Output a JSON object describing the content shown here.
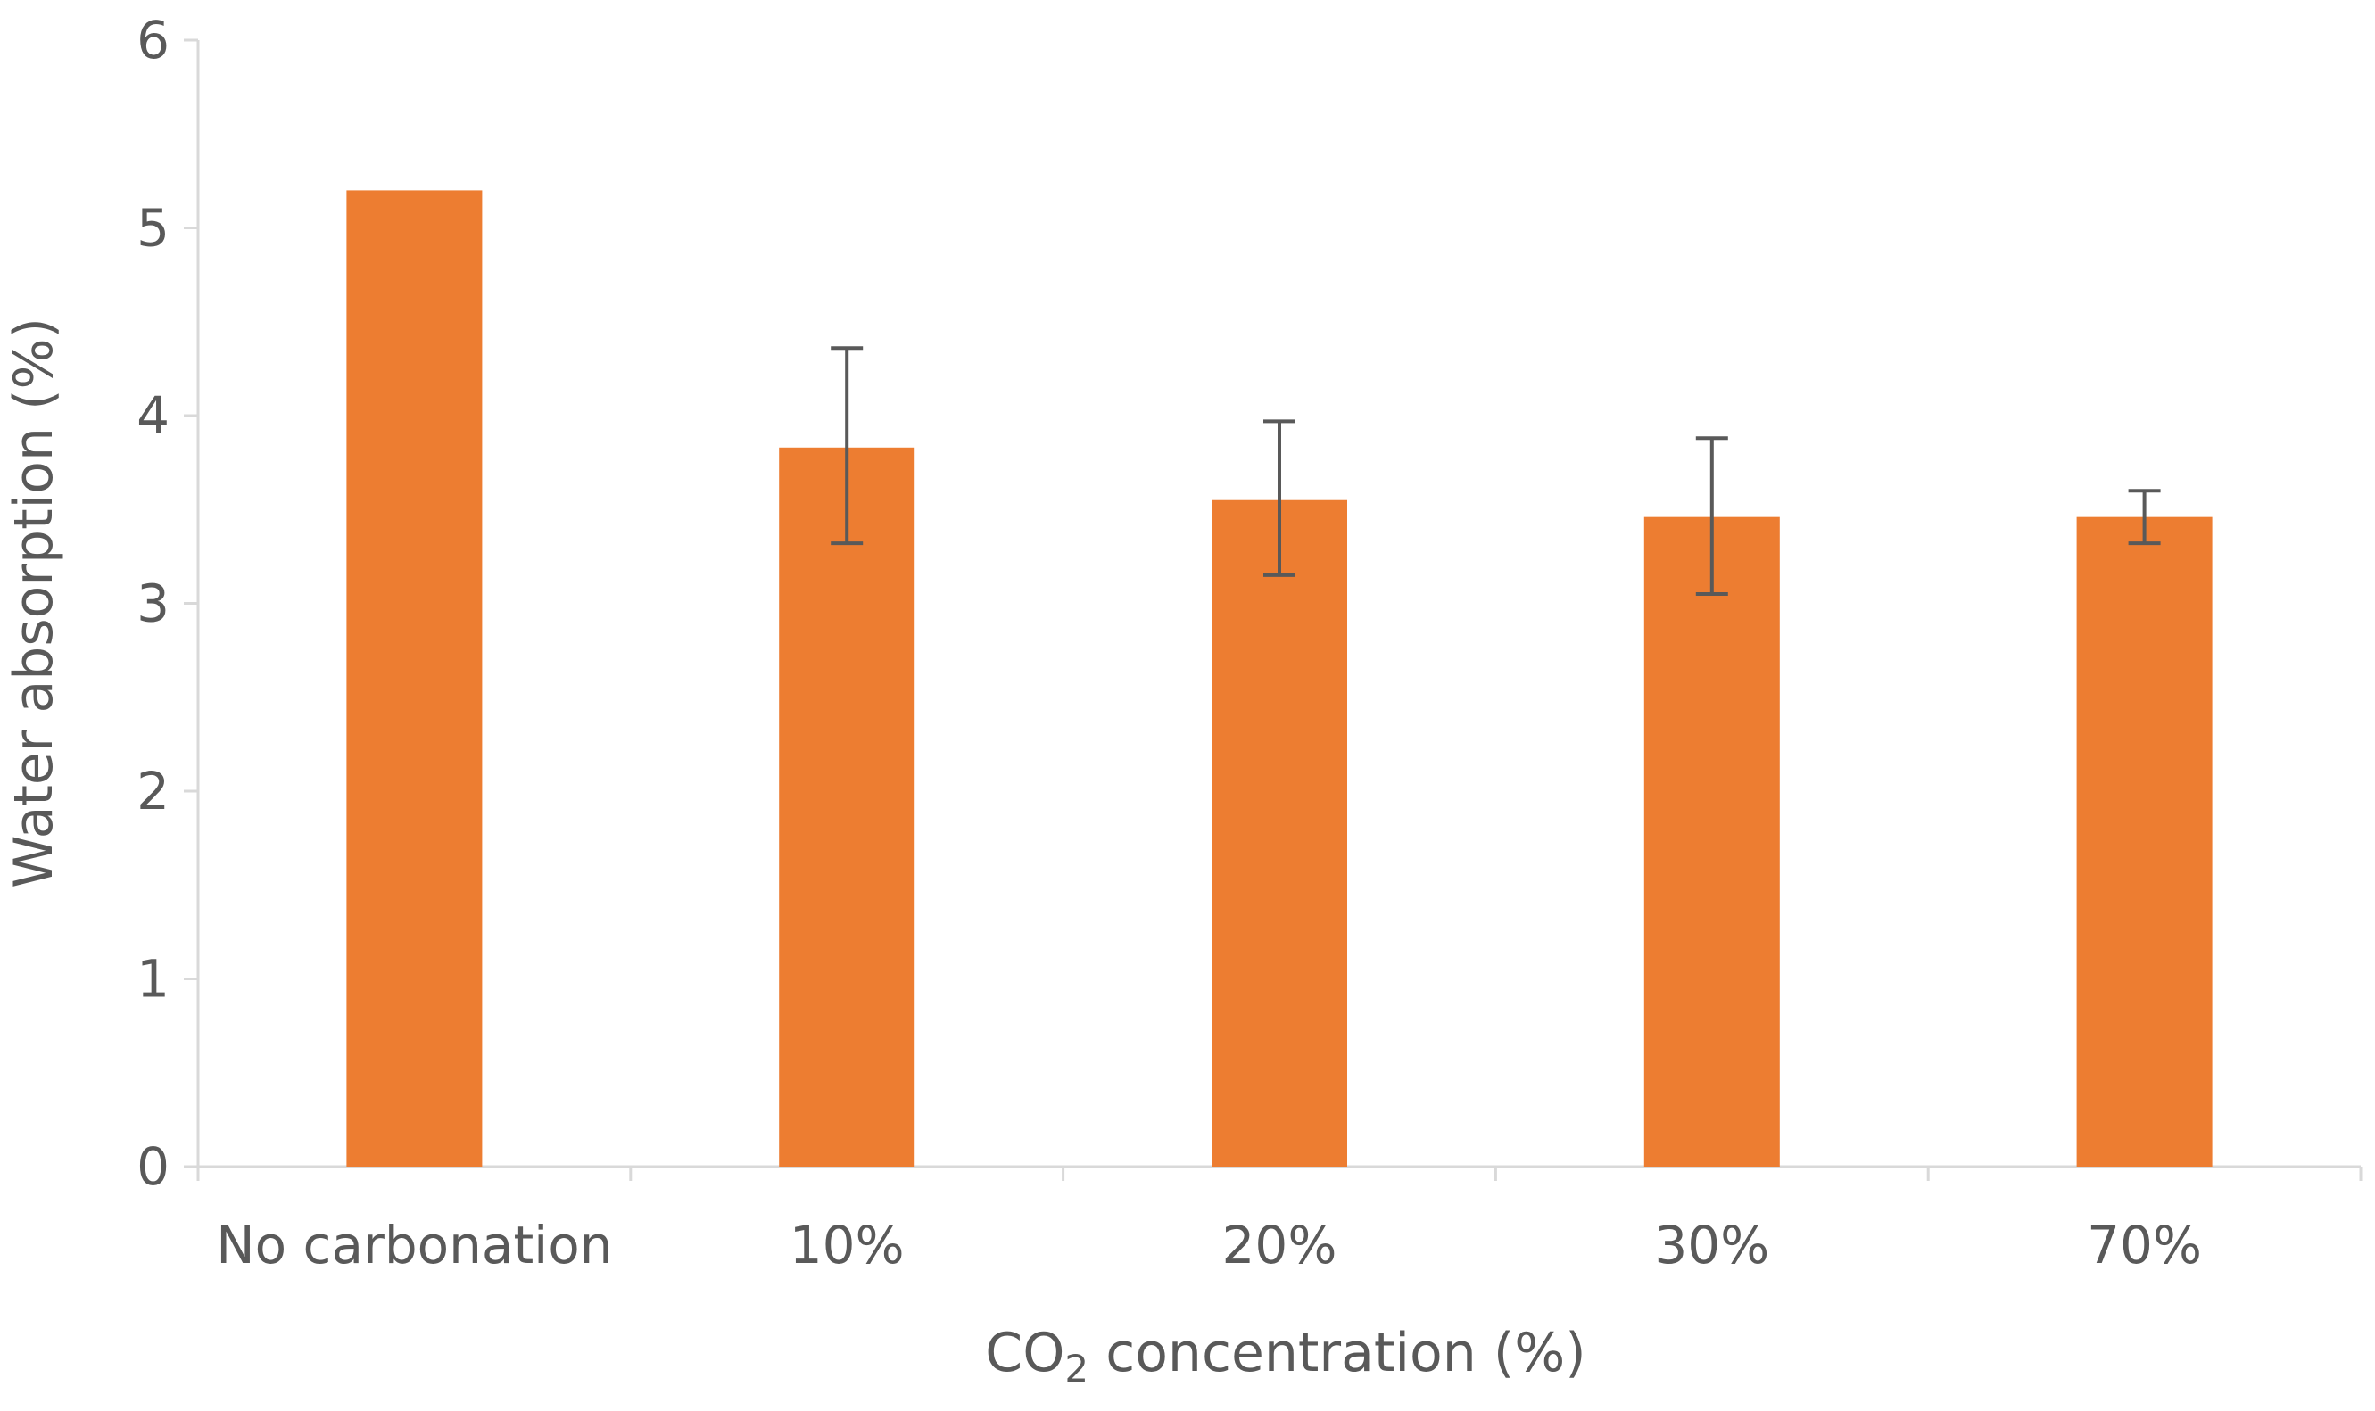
{
  "chart_data": {
    "type": "bar",
    "title": "",
    "categories": [
      "No carbonation",
      "10%",
      "20%",
      "30%",
      "70%"
    ],
    "series": [
      {
        "name": "Water absorption",
        "values": [
          5.2,
          3.83,
          3.55,
          3.46,
          3.46
        ],
        "error_low": [
          null,
          3.32,
          3.15,
          3.05,
          3.32
        ],
        "error_high": [
          null,
          4.36,
          3.97,
          3.88,
          3.6
        ],
        "color": "#ed7d31"
      }
    ],
    "xlabel": {
      "prefix": "CO",
      "subscript": "2",
      "suffix": " concentration (%)"
    },
    "ylabel": "Water absorption (%)",
    "ylim": [
      0,
      6
    ],
    "yticks": [
      0,
      1,
      2,
      3,
      4,
      5,
      6
    ],
    "grid": false,
    "legend": "none"
  },
  "colors": {
    "bar": "#ed7d31",
    "axis": "#d9d9d9",
    "error_bar": "#595959",
    "text": "#595959"
  }
}
